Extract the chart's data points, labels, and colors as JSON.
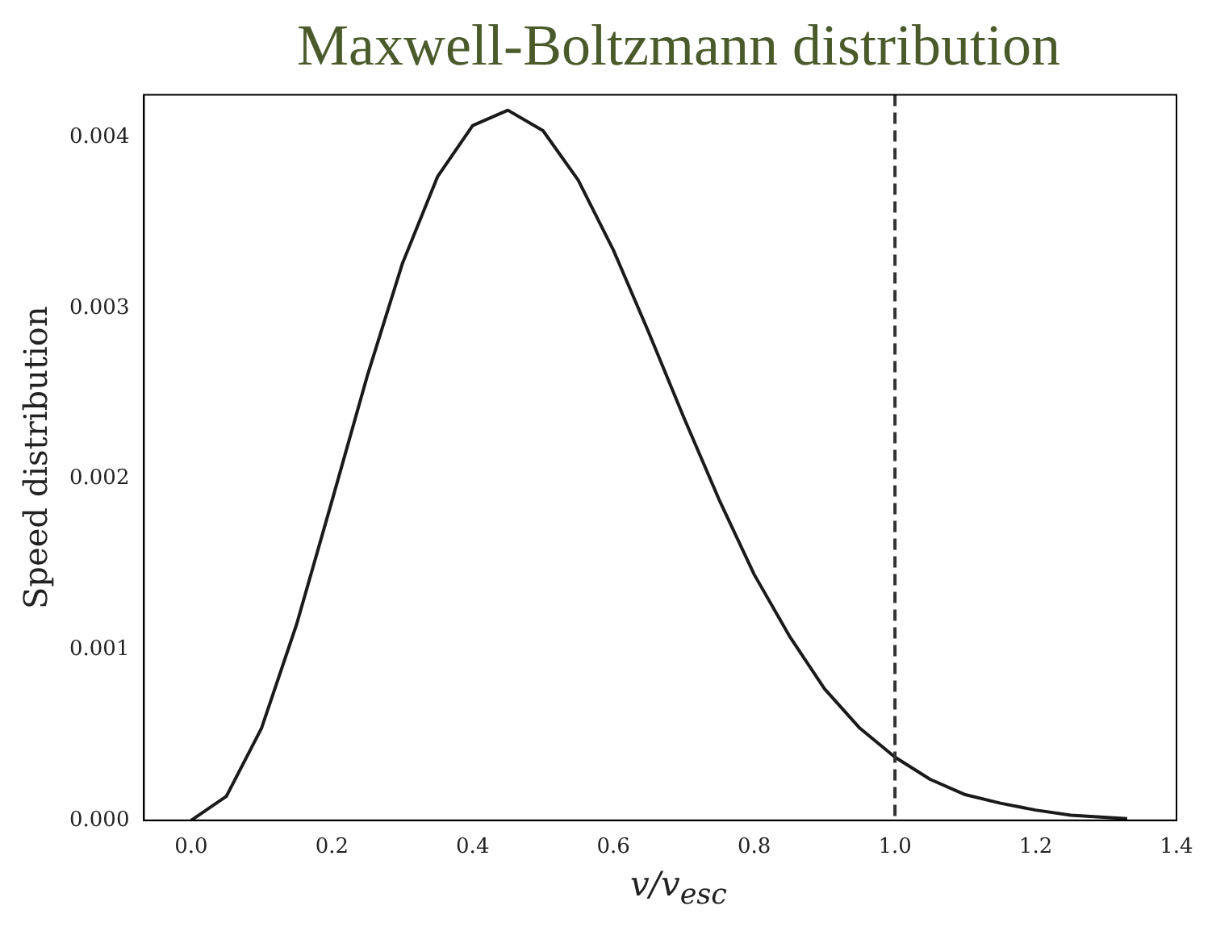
{
  "chart_data": {
    "type": "line",
    "title": "Maxwell-Boltzmann distribution",
    "xlabel": "v/v$_{esc}$",
    "ylabel": "Speed distribution",
    "x": [
      0,
      0.05,
      0.1,
      0.15,
      0.2,
      0.25,
      0.3,
      0.35,
      0.4,
      0.45,
      0.5,
      0.55,
      0.6,
      0.65,
      0.7,
      0.75,
      0.8,
      0.85,
      0.9,
      0.95,
      1.0,
      1.05,
      1.1,
      1.15,
      1.2,
      1.25,
      1.33
    ],
    "series": [
      {
        "color": "#1a1a1a",
        "values": [
          0,
          0.00014,
          0.00054,
          0.00115,
          0.00187,
          0.0026,
          0.00326,
          0.00377,
          0.00407,
          0.00416,
          0.00404,
          0.00375,
          0.00334,
          0.00286,
          0.00236,
          0.00188,
          0.00144,
          0.00108,
          0.00077,
          0.00054,
          0.00037,
          0.00024,
          0.00015,
          0.0001,
          6e-05,
          3e-05,
          1e-05
        ]
      }
    ],
    "xlim": [
      -0.067,
      1.4
    ],
    "ylim": [
      0,
      0.00425
    ],
    "xticks": [
      {
        "value": 0,
        "label": "0.0"
      },
      {
        "value": 0.2,
        "label": "0.2"
      },
      {
        "value": 0.4,
        "label": "0.4"
      },
      {
        "value": 0.6,
        "label": "0.6"
      },
      {
        "value": 0.8,
        "label": "0.8"
      },
      {
        "value": 1,
        "label": "1.0"
      },
      {
        "value": 1.2,
        "label": "1.2"
      },
      {
        "value": 1.4,
        "label": "1.4"
      }
    ],
    "yticks": [
      {
        "value": 0,
        "label": "0.000"
      },
      {
        "value": 0.001,
        "label": "0.001"
      },
      {
        "value": 0.002,
        "label": "0.002"
      },
      {
        "value": 0.003,
        "label": "0.003"
      },
      {
        "value": 0.004,
        "label": "0.004"
      }
    ],
    "ref_lines": [
      {
        "axis": "x",
        "value": 1.0,
        "color": "#333333",
        "line_style": "dashed"
      }
    ],
    "grid": false,
    "legend": false,
    "marker": "none",
    "line_style": "solid"
  }
}
